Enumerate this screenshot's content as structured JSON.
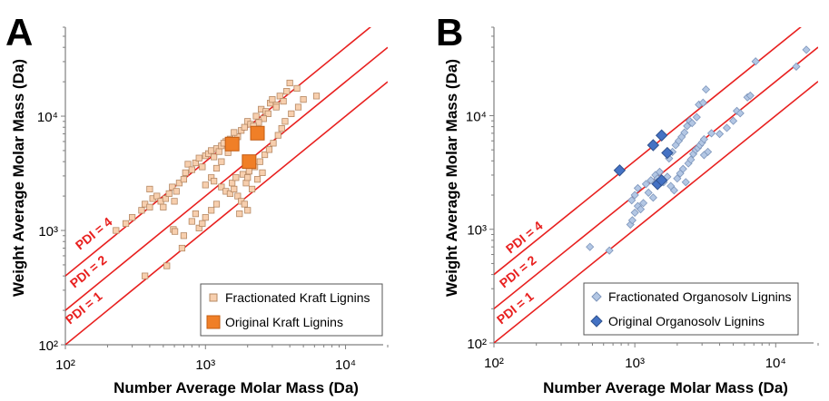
{
  "panels": [
    {
      "label": "A",
      "xlabel": "Number Average Molar Mass (Da)",
      "ylabel": "Weight Average Molar Mass (Da)",
      "legend_position": "bottom-right"
    },
    {
      "label": "B",
      "xlabel": "Number Average Molar Mass (Da)",
      "ylabel": "Weight Average Molar Mass (Da)",
      "legend_position": "bottom-right"
    }
  ],
  "tick_labels": {
    "x": [
      "10²",
      "10³",
      "10⁴"
    ],
    "y": [
      "10²",
      "10³",
      "10⁴"
    ]
  },
  "colors": {
    "pdi_line": "#e8201f",
    "kraft_fractionated_fill": "#f7cfae",
    "kraft_fractionated_edge": "#b58863",
    "kraft_original_fill": "#f07f27",
    "kraft_original_edge": "#c35c12",
    "organosolv_fractionated_fill": "#b3c7e4",
    "organosolv_fractionated_edge": "#7d95bb",
    "organosolv_original_fill": "#4472c4",
    "organosolv_original_edge": "#2f528f"
  },
  "chart_data": [
    {
      "type": "scatter",
      "panel": "A",
      "xscale": "log",
      "yscale": "log",
      "xlim": [
        100,
        20000
      ],
      "ylim": [
        100,
        60000
      ],
      "xlabel": "Number Average Molar Mass (Da)",
      "ylabel": "Weight Average Molar Mass (Da)",
      "grid": false,
      "legend_position": "bottom-right",
      "reference_lines": [
        {
          "label": "PDI = 4",
          "ratio": 4
        },
        {
          "label": "PDI = 2",
          "ratio": 2
        },
        {
          "label": "PDI = 1",
          "ratio": 1
        }
      ],
      "series": [
        {
          "name": "Fractionated Kraft Lignins",
          "marker": "square",
          "points": [
            [
              230,
              1000
            ],
            [
              270,
              1150
            ],
            [
              300,
              1300
            ],
            [
              350,
              1500
            ],
            [
              370,
              1700
            ],
            [
              400,
              1600
            ],
            [
              400,
              2300
            ],
            [
              420,
              1900
            ],
            [
              450,
              2000
            ],
            [
              480,
              1800
            ],
            [
              500,
              1600
            ],
            [
              520,
              1900
            ],
            [
              550,
              2100
            ],
            [
              580,
              2400
            ],
            [
              600,
              1800
            ],
            [
              620,
              2200
            ],
            [
              650,
              2600
            ],
            [
              700,
              2800
            ],
            [
              720,
              3200
            ],
            [
              750,
              3800
            ],
            [
              800,
              3400
            ],
            [
              850,
              3900
            ],
            [
              900,
              4300
            ],
            [
              950,
              3600
            ],
            [
              1000,
              4500
            ],
            [
              1050,
              4700
            ],
            [
              1100,
              5000
            ],
            [
              1150,
              4400
            ],
            [
              1200,
              5200
            ],
            [
              1250,
              4900
            ],
            [
              1300,
              5500
            ],
            [
              1400,
              6000
            ],
            [
              1700,
              6600
            ],
            [
              1800,
              7500
            ],
            [
              1900,
              8000
            ],
            [
              2000,
              9000
            ],
            [
              2100,
              8500
            ],
            [
              2300,
              10000
            ],
            [
              2500,
              11500
            ],
            [
              2700,
              11000
            ],
            [
              2900,
              13000
            ],
            [
              3000,
              14000
            ],
            [
              3200,
              12500
            ],
            [
              3400,
              15000
            ],
            [
              3600,
              13500
            ],
            [
              3800,
              16500
            ],
            [
              4000,
              19500
            ],
            [
              4500,
              17500
            ],
            [
              5000,
              14000
            ],
            [
              6200,
              15000
            ],
            [
              3200,
              12000
            ],
            [
              2800,
              10500
            ],
            [
              2600,
              9500
            ],
            [
              2400,
              8800
            ],
            [
              2200,
              8200
            ],
            [
              1600,
              7200
            ],
            [
              1500,
              6300
            ],
            [
              1350,
              5800
            ],
            [
              1450,
              4800
            ],
            [
              1300,
              4000
            ],
            [
              1200,
              3500
            ],
            [
              1100,
              2900
            ],
            [
              1000,
              2500
            ],
            [
              1150,
              2700
            ],
            [
              1300,
              2400
            ],
            [
              1400,
              2200
            ],
            [
              1500,
              2100
            ],
            [
              1600,
              2300
            ],
            [
              1700,
              2000
            ],
            [
              1800,
              1800
            ],
            [
              1900,
              1700
            ],
            [
              2000,
              1500
            ],
            [
              1750,
              1400
            ],
            [
              1550,
              2600
            ],
            [
              1650,
              2900
            ],
            [
              1850,
              3100
            ],
            [
              2050,
              3300
            ],
            [
              2250,
              3600
            ],
            [
              2450,
              4000
            ],
            [
              2650,
              4600
            ],
            [
              2850,
              5100
            ],
            [
              3050,
              5800
            ],
            [
              3300,
              6800
            ],
            [
              3500,
              7800
            ],
            [
              3700,
              9000
            ],
            [
              4100,
              10500
            ],
            [
              4600,
              12000
            ],
            [
              2550,
              3200
            ],
            [
              2350,
              2800
            ],
            [
              2150,
              2300
            ],
            [
              850,
              1400
            ],
            [
              800,
              1200
            ],
            [
              700,
              900
            ],
            [
              680,
              700
            ],
            [
              900,
              1050
            ],
            [
              950,
              1150
            ],
            [
              1000,
              1300
            ],
            [
              1100,
              1500
            ],
            [
              1200,
              1700
            ],
            [
              590,
              1020
            ],
            [
              605,
              980
            ],
            [
              530,
              490
            ],
            [
              370,
              400
            ],
            [
              1950,
              2600
            ],
            [
              2000,
              2900
            ]
          ]
        },
        {
          "name": "Original Kraft Lignins",
          "marker": "square",
          "points": [
            [
              1550,
              5700
            ],
            [
              2050,
              4000
            ],
            [
              2350,
              7100
            ]
          ]
        }
      ]
    },
    {
      "type": "scatter",
      "panel": "B",
      "xscale": "log",
      "yscale": "log",
      "xlim": [
        100,
        20000
      ],
      "ylim": [
        100,
        60000
      ],
      "xlabel": "Number Average Molar Mass (Da)",
      "ylabel": "Weight Average Molar Mass (Da)",
      "grid": false,
      "legend_position": "bottom-right",
      "reference_lines": [
        {
          "label": "PDI = 4",
          "ratio": 4
        },
        {
          "label": "PDI = 2",
          "ratio": 2
        },
        {
          "label": "PDI = 1",
          "ratio": 1
        }
      ],
      "series": [
        {
          "name": "Fractionated Organosolv Lignins",
          "marker": "diamond",
          "points": [
            [
              480,
              700
            ],
            [
              660,
              650
            ],
            [
              930,
              1100
            ],
            [
              960,
              1200
            ],
            [
              1000,
              1400
            ],
            [
              1050,
              1600
            ],
            [
              1100,
              1500
            ],
            [
              1150,
              1700
            ],
            [
              950,
              1800
            ],
            [
              1000,
              2000
            ],
            [
              1050,
              2300
            ],
            [
              1200,
              2500
            ],
            [
              1300,
              2700
            ],
            [
              1400,
              3000
            ],
            [
              1450,
              2800
            ],
            [
              1500,
              3200
            ],
            [
              1600,
              2600
            ],
            [
              1700,
              2900
            ],
            [
              1800,
              2400
            ],
            [
              1900,
              2200
            ],
            [
              2000,
              2800
            ],
            [
              2100,
              3100
            ],
            [
              2200,
              3400
            ],
            [
              2300,
              2600
            ],
            [
              2400,
              3800
            ],
            [
              2500,
              4100
            ],
            [
              2600,
              4600
            ],
            [
              2700,
              5000
            ],
            [
              2800,
              5200
            ],
            [
              2900,
              5500
            ],
            [
              3000,
              5800
            ],
            [
              3100,
              6200
            ],
            [
              1750,
              4200
            ],
            [
              1850,
              4800
            ],
            [
              1950,
              5500
            ],
            [
              2050,
              6000
            ],
            [
              2150,
              6500
            ],
            [
              2250,
              7100
            ],
            [
              2350,
              8100
            ],
            [
              2450,
              9000
            ],
            [
              2550,
              8600
            ],
            [
              2750,
              9700
            ],
            [
              2850,
              12500
            ],
            [
              3050,
              13000
            ],
            [
              3200,
              17000
            ],
            [
              3500,
              7000
            ],
            [
              4000,
              6900
            ],
            [
              4500,
              7800
            ],
            [
              5000,
              9000
            ],
            [
              5300,
              11000
            ],
            [
              5600,
              10500
            ],
            [
              6300,
              14500
            ],
            [
              6600,
              15000
            ],
            [
              7200,
              30000
            ],
            [
              14000,
              27000
            ],
            [
              16500,
              38000
            ],
            [
              3300,
              4800
            ],
            [
              3100,
              4500
            ],
            [
              1350,
              1900
            ],
            [
              1250,
              2100
            ]
          ]
        },
        {
          "name": "Original Organosolv Lignins",
          "marker": "diamond",
          "points": [
            [
              780,
              3300
            ],
            [
              1350,
              5500
            ],
            [
              1550,
              6700
            ],
            [
              1700,
              4700
            ],
            [
              1450,
              2500
            ],
            [
              1550,
              2700
            ]
          ]
        }
      ]
    }
  ]
}
